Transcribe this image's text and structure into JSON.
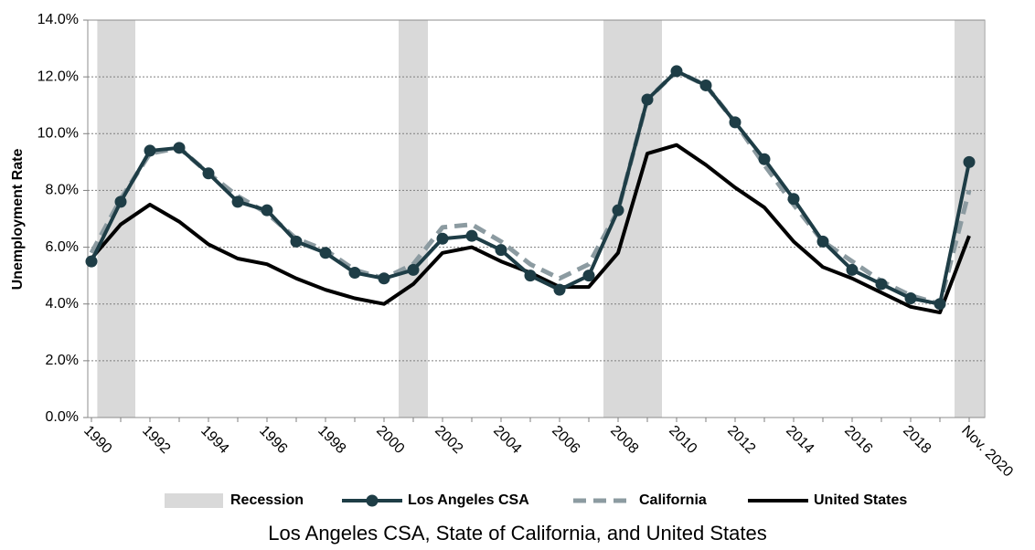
{
  "chart_data": {
    "type": "line",
    "title": "Los Angeles CSA, State of California, and United States",
    "y_label": "Unemployment Rate",
    "categories": [
      "1990",
      null,
      "1992",
      null,
      "1994",
      null,
      "1996",
      null,
      "1998",
      null,
      "2000",
      null,
      "2002",
      null,
      "2004",
      null,
      "2006",
      null,
      "2008",
      null,
      "2010",
      null,
      "2012",
      null,
      "2014",
      null,
      "2016",
      null,
      "2018",
      null,
      "Nov. 2020"
    ],
    "series": [
      {
        "name": "Los Angeles CSA",
        "color": "#1e3d46",
        "style": "solid-markers",
        "values": [
          5.5,
          7.6,
          9.4,
          9.5,
          8.6,
          7.6,
          7.3,
          6.2,
          5.8,
          5.1,
          4.9,
          5.2,
          6.3,
          6.4,
          5.9,
          5.0,
          4.5,
          5.0,
          7.3,
          11.2,
          12.2,
          11.7,
          10.4,
          9.1,
          7.7,
          6.2,
          5.2,
          4.7,
          4.2,
          4.0,
          9.0
        ]
      },
      {
        "name": "California",
        "color": "#8c9ba1",
        "style": "dashed",
        "values": [
          5.8,
          7.7,
          9.3,
          9.5,
          8.6,
          7.8,
          7.2,
          6.3,
          5.9,
          5.2,
          4.9,
          5.4,
          6.7,
          6.8,
          6.2,
          5.4,
          4.9,
          5.4,
          7.3,
          11.2,
          12.2,
          11.7,
          10.4,
          8.9,
          7.5,
          6.2,
          5.5,
          4.8,
          4.3,
          4.0,
          8.0
        ]
      },
      {
        "name": "United States",
        "color": "#000000",
        "style": "solid",
        "values": [
          5.6,
          6.8,
          7.5,
          6.9,
          6.1,
          5.6,
          5.4,
          4.9,
          4.5,
          4.2,
          4.0,
          4.7,
          5.8,
          6.0,
          5.5,
          5.1,
          4.6,
          4.6,
          5.8,
          9.3,
          9.6,
          8.9,
          8.1,
          7.4,
          6.2,
          5.3,
          4.9,
          4.4,
          3.9,
          3.7,
          6.4
        ]
      }
    ],
    "recession": {
      "name": "Recession",
      "color": "#d9d9d9",
      "spans": [
        {
          "start": 1990.2,
          "end": 1991.5
        },
        {
          "start": 2000.5,
          "end": 2001.5
        },
        {
          "start": 2007.5,
          "end": 2009.5
        },
        {
          "start": 2019.5,
          "end": 2020.5
        }
      ]
    },
    "x_start_year": 1990,
    "ylim": [
      0,
      14
    ],
    "yticks": [
      {
        "value": 0,
        "label": "0.0%"
      },
      {
        "value": 2,
        "label": "2.0%"
      },
      {
        "value": 4,
        "label": "4.0%"
      },
      {
        "value": 6,
        "label": "6.0%"
      },
      {
        "value": 8,
        "label": "8.0%"
      },
      {
        "value": 10,
        "label": "10.0%"
      },
      {
        "value": 12,
        "label": "12.0%"
      },
      {
        "value": 14,
        "label": "14.0%"
      }
    ],
    "grid": true
  }
}
